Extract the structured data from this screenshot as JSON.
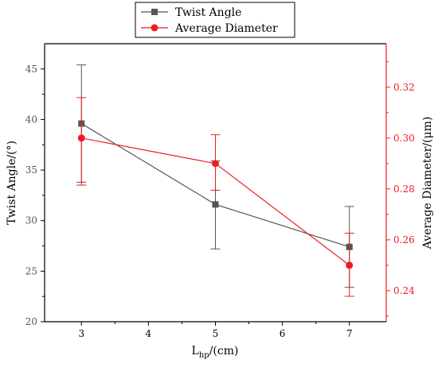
{
  "chart_data": {
    "type": "line",
    "xlabel": {
      "main": "L",
      "sub": "hp",
      "rest": "/(cm)"
    },
    "ylabel_left": "Twist Angle/(°)",
    "ylabel_right": "Average Diameter/(μm)",
    "xlim": [
      2.45,
      7.55
    ],
    "ylim_left": [
      20,
      47.5
    ],
    "ylim_right": [
      0.2278,
      0.3371
    ],
    "x_ticks": [
      3,
      4,
      5,
      6,
      7
    ],
    "y_ticks_left": [
      20,
      25,
      30,
      35,
      40,
      45
    ],
    "y_ticks_right": [
      0.24,
      0.26,
      0.28,
      0.3,
      0.32
    ],
    "grid": false,
    "legend_position": "top-center",
    "series": [
      {
        "name": "Twist Angle",
        "axis": "left",
        "color": "#555555",
        "marker": "square",
        "x": [
          3,
          5,
          7
        ],
        "y": [
          39.6,
          31.6,
          27.4
        ],
        "err_upper": [
          45.4,
          35.9,
          31.4
        ],
        "err_lower": [
          33.8,
          27.2,
          23.4
        ]
      },
      {
        "name": "Average Diameter",
        "axis": "right",
        "color": "#ee1c24",
        "marker": "circle",
        "x": [
          3,
          5,
          7
        ],
        "y": [
          0.3,
          0.29,
          0.25
        ],
        "err_upper": [
          0.3159,
          0.3013,
          0.2626
        ],
        "err_lower": [
          0.2815,
          0.2795,
          0.2378
        ]
      }
    ]
  }
}
